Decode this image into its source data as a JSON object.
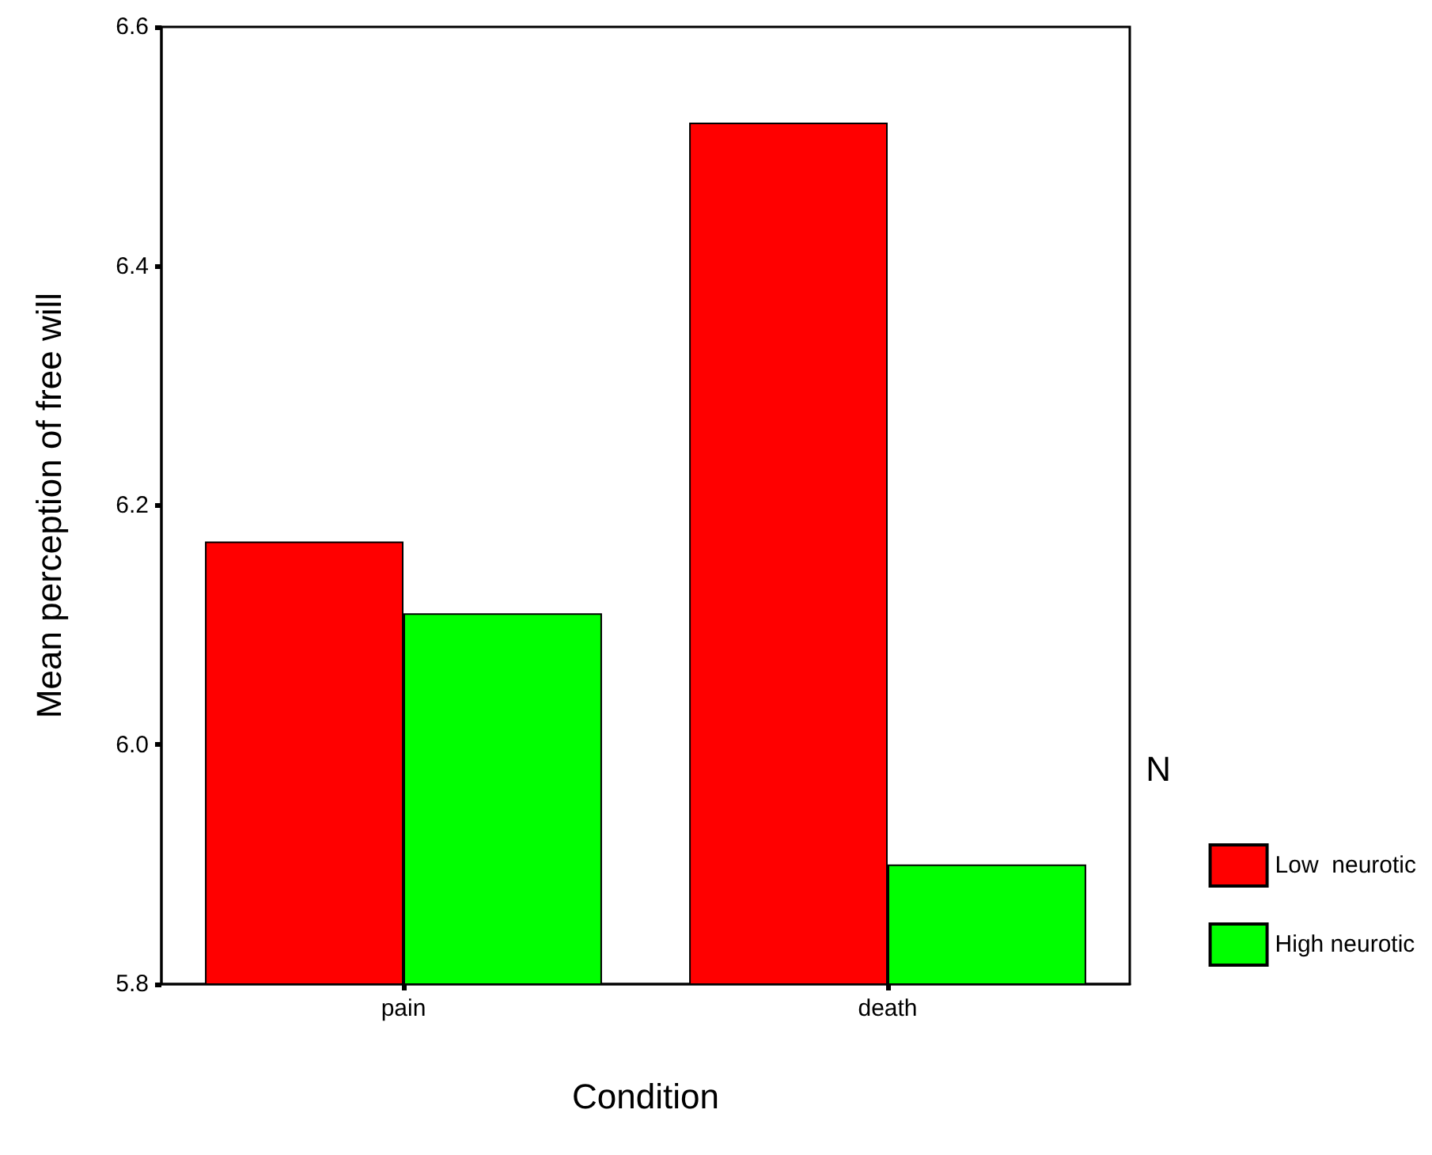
{
  "chart_data": {
    "type": "bar",
    "xlabel": "Condition",
    "ylabel": "Mean perception of free will",
    "legend_title": "N",
    "categories": [
      "pain",
      "death"
    ],
    "series": [
      {
        "name": "Low  neurotic",
        "color": "#ff0000",
        "values": [
          6.17,
          6.52
        ]
      },
      {
        "name": "High neurotic",
        "color": "#00ff00",
        "values": [
          6.11,
          5.9
        ]
      }
    ],
    "ylim": [
      5.8,
      6.6
    ],
    "yticks": [
      5.8,
      {
        "value": 6,
        "label": "6.0"
      },
      6.2,
      6.4,
      6.6
    ],
    "grid": false,
    "legend": "right"
  }
}
